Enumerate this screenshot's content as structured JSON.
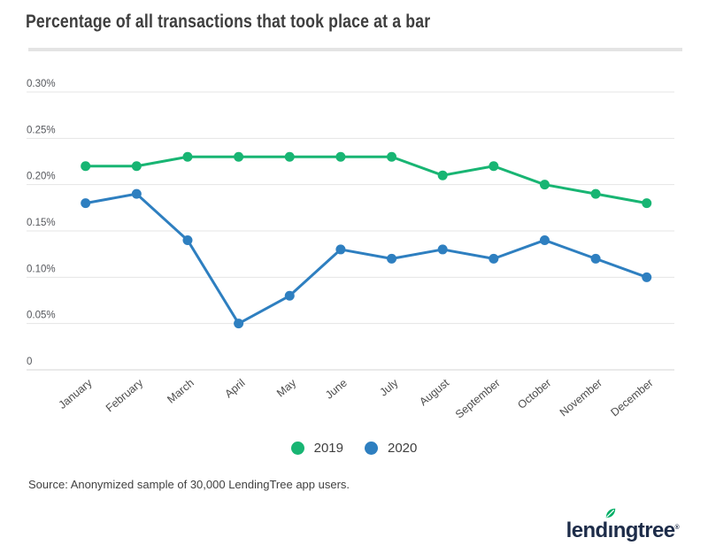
{
  "title": "Percentage of all transactions that took place at a bar",
  "source": "Source: Anonymized sample of 30,000 LendingTree app users.",
  "logo": {
    "pre": "lend",
    "i": "ı",
    "post": "ngtree",
    "reg": "®",
    "alt": "lendingtree"
  },
  "colors": {
    "green": "#18b573",
    "blue": "#2e7fc0",
    "grid": "#e4e4e4",
    "grid_zero": "#d4d4d4",
    "title_text": "#3e3e3e",
    "tick_text": "#55575c",
    "month_text": "#4c4c4c",
    "navy": "#1d2c49"
  },
  "chart_data": {
    "type": "line",
    "title": "Percentage of all transactions that took place at a bar",
    "xlabel": "",
    "ylabel": "",
    "grid": true,
    "legend_position": "bottom",
    "ylim": [
      0,
      0.3
    ],
    "y_ticks": [
      "0.30%",
      "0.25%",
      "0.20%",
      "0.15%",
      "0.10%",
      "0.05%",
      "0"
    ],
    "y_tick_values": [
      0.3,
      0.25,
      0.2,
      0.15,
      0.1,
      0.05,
      0
    ],
    "categories": [
      "January",
      "February",
      "March",
      "April",
      "May",
      "June",
      "July",
      "August",
      "September",
      "October",
      "November",
      "December"
    ],
    "series": [
      {
        "name": "2019",
        "color": "#18b573",
        "values": [
          0.22,
          0.22,
          0.23,
          0.23,
          0.23,
          0.23,
          0.23,
          0.21,
          0.22,
          0.2,
          0.19,
          0.18
        ]
      },
      {
        "name": "2020",
        "color": "#2e7fc0",
        "values": [
          0.18,
          0.19,
          0.14,
          0.05,
          0.08,
          0.13,
          0.12,
          0.13,
          0.12,
          0.14,
          0.12,
          0.1
        ]
      }
    ]
  }
}
